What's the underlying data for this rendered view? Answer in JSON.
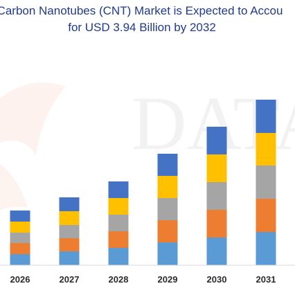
{
  "title_line1": "Carbon Nanotubes (CNT) Market is Expected to Accou",
  "title_line2": "for USD 3.94 Billion by 2032",
  "watermark_text": "DATA",
  "chart_data": {
    "type": "bar",
    "stacked": true,
    "categories": [
      "2026",
      "2027",
      "2028",
      "2029",
      "2030",
      "2031"
    ],
    "series": [
      {
        "color": "#5b9bd5",
        "values": [
          16,
          20,
          25,
          33,
          40,
          48
        ]
      },
      {
        "color": "#ed7d31",
        "values": [
          16,
          19,
          24,
          32,
          40,
          48
        ]
      },
      {
        "color": "#a5a5a5",
        "values": [
          15,
          19,
          24,
          32,
          40,
          48
        ]
      },
      {
        "color": "#ffc000",
        "values": [
          16,
          20,
          24,
          32,
          40,
          47
        ]
      },
      {
        "color": "#4472c4",
        "values": [
          16,
          20,
          24,
          32,
          40,
          48
        ]
      }
    ],
    "legend": "none",
    "grid": false,
    "y_axis_labels": "none"
  }
}
